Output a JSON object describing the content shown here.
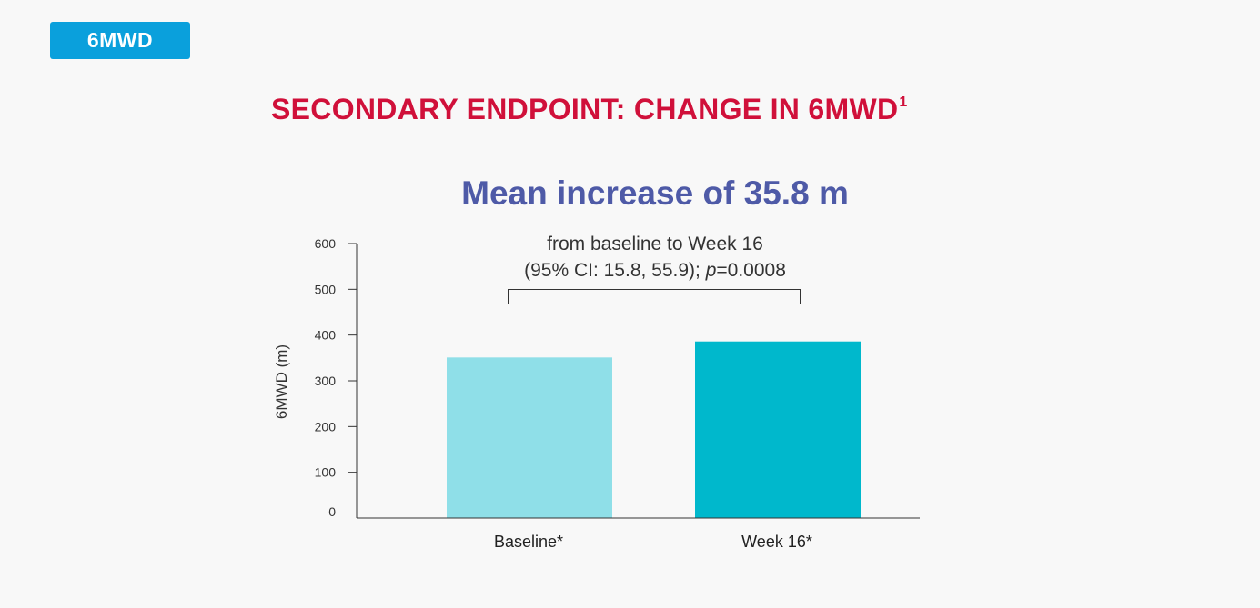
{
  "tag": {
    "label": "6MWD"
  },
  "section_title": {
    "text": "SECONDARY ENDPOINT: CHANGE IN 6MWD",
    "superscript": "1"
  },
  "headline": "Mean increase of 35.8 m",
  "annotation": {
    "line1": "from baseline to Week 16",
    "line2_prefix": "(95% CI: 15.8, 55.9); ",
    "line2_p": "p",
    "line2_suffix": "=0.0008"
  },
  "chart_data": {
    "type": "bar",
    "title": "Mean increase of 35.8 m",
    "xlabel": "",
    "ylabel": "6MWD (m)",
    "ylim": [
      0,
      600
    ],
    "yticks": [
      0,
      100,
      200,
      300,
      400,
      500,
      600
    ],
    "categories": [
      "Baseline*",
      "Week 16*"
    ],
    "values": [
      351,
      386
    ],
    "colors": [
      "#8fdfe8",
      "#00b8cc"
    ],
    "annotation": "from baseline to Week 16 (95% CI: 15.8, 55.9); p=0.0008",
    "bracket": {
      "from": "Baseline*",
      "to": "Week 16*"
    }
  }
}
